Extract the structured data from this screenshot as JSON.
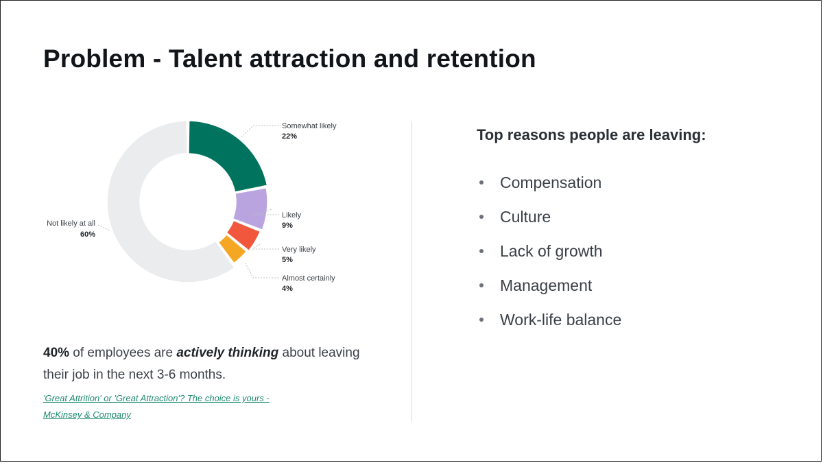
{
  "title": "Problem - Talent attraction and retention",
  "chart_data": {
    "type": "pie",
    "donut": true,
    "categories": [
      "Somewhat likely",
      "Likely",
      "Very likely",
      "Almost certainly",
      "Not likely at all"
    ],
    "values": [
      22,
      9,
      5,
      4,
      60
    ],
    "value_labels": [
      "22%",
      "9%",
      "5%",
      "4%",
      "60%"
    ],
    "colors": [
      "#00735f",
      "#b9a4e0",
      "#f0573d",
      "#f5a623",
      "#ebecee"
    ],
    "title": "",
    "legend": "none"
  },
  "summary": {
    "stat": "40%",
    "text_before": " of employees are ",
    "emphasis": "actively thinking",
    "text_after": " about leaving their job in the next 3-6 months."
  },
  "source_link": "'Great Attrition' or 'Great Attraction'? The choice is yours - McKinsey & Company",
  "reasons": {
    "title": "Top reasons people are leaving:",
    "items": [
      "Compensation",
      "Culture",
      "Lack of growth",
      "Management",
      "Work-life balance"
    ]
  }
}
